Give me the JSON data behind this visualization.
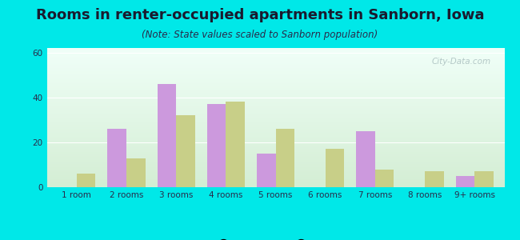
{
  "title": "Rooms in renter-occupied apartments in Sanborn, Iowa",
  "subtitle": "(Note: State values scaled to Sanborn population)",
  "categories": [
    "1 room",
    "2 rooms",
    "3 rooms",
    "4 rooms",
    "5 rooms",
    "6 rooms",
    "7 rooms",
    "8 rooms",
    "9+ rooms"
  ],
  "sanborn_values": [
    0,
    26,
    46,
    37,
    15,
    0,
    25,
    0,
    5
  ],
  "iowa_values": [
    6,
    13,
    32,
    38,
    26,
    17,
    8,
    7,
    7
  ],
  "sanborn_color": "#cc99dd",
  "iowa_color": "#c8cf88",
  "background_color": "#00e8e8",
  "title_color": "#1a1a2e",
  "subtitle_color": "#2a2a4a",
  "tick_color": "#2a2a4a",
  "ylim": [
    0,
    62
  ],
  "yticks": [
    0,
    20,
    40,
    60
  ],
  "bar_width": 0.38,
  "title_fontsize": 13,
  "subtitle_fontsize": 8.5,
  "tick_fontsize": 7.5,
  "legend_fontsize": 9,
  "watermark_text": "City-Data.com",
  "watermark_color": "#aabfbf",
  "plot_grad_bottom": "#d4eed4",
  "plot_grad_top": "#f0fff8"
}
